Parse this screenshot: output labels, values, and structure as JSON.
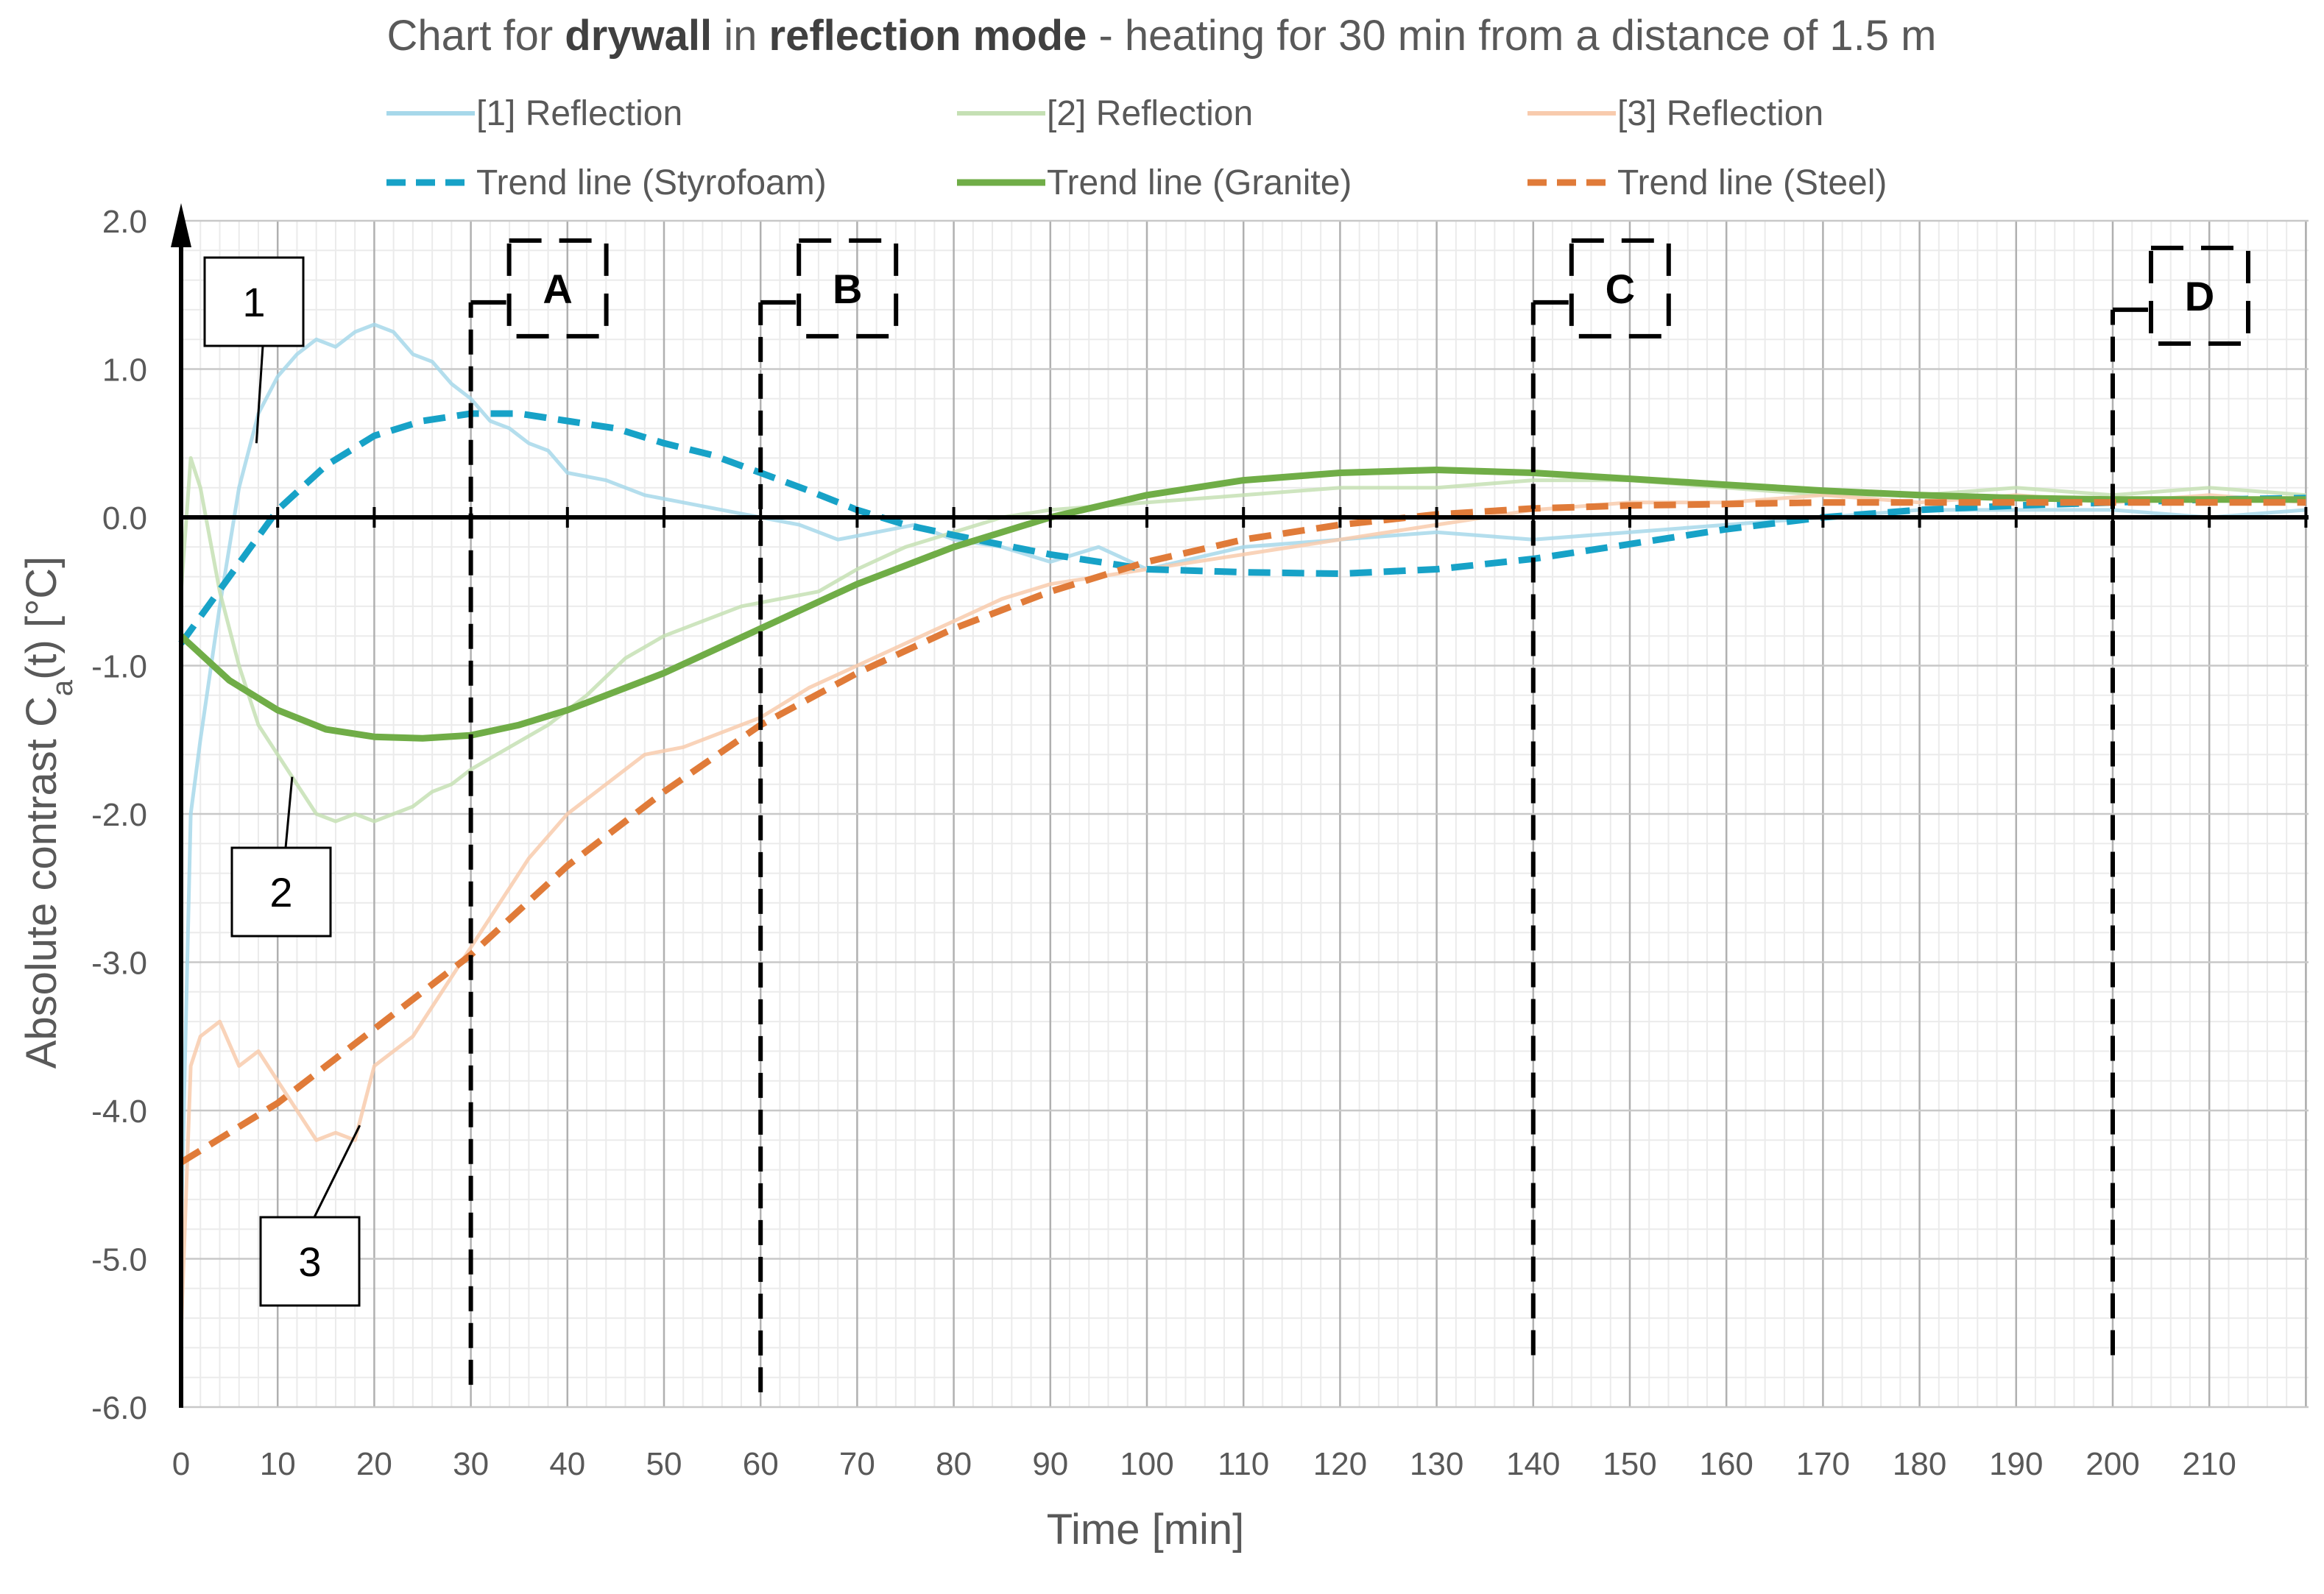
{
  "chart_data": {
    "type": "line",
    "title": {
      "parts": [
        {
          "text": "Chart for ",
          "bold": false
        },
        {
          "text": "drywall",
          "bold": true
        },
        {
          "text": " in ",
          "bold": false
        },
        {
          "text": "reflection mode",
          "bold": true
        },
        {
          "text": " - heating for 30 min from a distance of 1.5 m",
          "bold": false
        }
      ]
    },
    "xlabel": "Time [min]",
    "ylabel": {
      "prefix": "Absolute contrast C",
      "subscript": "a",
      "suffix": "(t)   [°C]"
    },
    "xlim": [
      0,
      220
    ],
    "ylim": [
      -6,
      2
    ],
    "x_ticks": [
      0,
      10,
      20,
      30,
      40,
      50,
      60,
      70,
      80,
      90,
      100,
      110,
      120,
      130,
      140,
      150,
      160,
      170,
      180,
      190,
      200,
      210
    ],
    "y_ticks": [
      2,
      1,
      0,
      -1,
      -2,
      -3,
      -4,
      -5,
      -6
    ],
    "y_tick_labels": [
      "2.0",
      "1.0",
      "0.0",
      "-1.0",
      "-2.0",
      "-3.0",
      "-4.0",
      "-5.0",
      "-6.0"
    ],
    "grid": true,
    "legend_position": "top",
    "legend": [
      {
        "label": "[1] Reflection",
        "color": "#a7d8ea",
        "style": "solid"
      },
      {
        "label": "[2] Reflection",
        "color": "#c5e0b4",
        "style": "solid"
      },
      {
        "label": "[3] Reflection",
        "color": "#f8cbad",
        "style": "solid"
      },
      {
        "label": "Trend line (Styrofoam)",
        "color": "#17a2c7",
        "style": "dashed"
      },
      {
        "label": "Trend line (Granite)",
        "color": "#70ad47",
        "style": "solid"
      },
      {
        "label": "Trend line (Steel)",
        "color": "#e07b39",
        "style": "dashed"
      }
    ],
    "series": [
      {
        "name": "[1] Reflection",
        "color": "#a7d8ea",
        "style": "solid",
        "x": [
          0,
          1,
          2,
          4,
          6,
          8,
          10,
          12,
          14,
          16,
          18,
          20,
          22,
          24,
          26,
          28,
          30,
          32,
          34,
          36,
          38,
          40,
          44,
          48,
          52,
          56,
          60,
          64,
          68,
          72,
          76,
          80,
          85,
          90,
          95,
          100,
          110,
          120,
          130,
          140,
          150,
          160,
          170,
          180,
          190,
          200,
          210,
          220
        ],
        "y": [
          -4.8,
          -2.0,
          -1.5,
          -0.6,
          0.2,
          0.7,
          0.95,
          1.1,
          1.2,
          1.15,
          1.25,
          1.3,
          1.25,
          1.1,
          1.05,
          0.9,
          0.8,
          0.65,
          0.6,
          0.5,
          0.45,
          0.3,
          0.25,
          0.15,
          0.1,
          0.05,
          0.0,
          -0.05,
          -0.15,
          -0.1,
          -0.05,
          -0.15,
          -0.2,
          -0.3,
          -0.2,
          -0.35,
          -0.2,
          -0.15,
          -0.1,
          -0.15,
          -0.1,
          -0.05,
          0.0,
          0.05,
          0.05,
          0.05,
          0.0,
          0.05
        ]
      },
      {
        "name": "[2] Reflection",
        "color": "#c5e0b4",
        "style": "solid",
        "x": [
          0,
          1,
          2,
          4,
          6,
          8,
          10,
          12,
          14,
          16,
          18,
          20,
          22,
          24,
          26,
          28,
          30,
          34,
          38,
          42,
          46,
          50,
          54,
          58,
          62,
          66,
          70,
          75,
          80,
          85,
          90,
          100,
          110,
          120,
          130,
          140,
          150,
          160,
          170,
          180,
          190,
          200,
          210,
          220
        ],
        "y": [
          -0.5,
          0.4,
          0.2,
          -0.5,
          -1.0,
          -1.4,
          -1.6,
          -1.8,
          -2.0,
          -2.05,
          -2.0,
          -2.05,
          -2.0,
          -1.95,
          -1.85,
          -1.8,
          -1.7,
          -1.55,
          -1.4,
          -1.2,
          -0.95,
          -0.8,
          -0.7,
          -0.6,
          -0.55,
          -0.5,
          -0.35,
          -0.2,
          -0.1,
          0.0,
          0.05,
          0.1,
          0.15,
          0.2,
          0.2,
          0.25,
          0.25,
          0.2,
          0.15,
          0.15,
          0.2,
          0.15,
          0.2,
          0.15
        ]
      },
      {
        "name": "[3] Reflection",
        "color": "#f8cbad",
        "style": "solid",
        "x": [
          0,
          1,
          2,
          4,
          6,
          8,
          10,
          12,
          14,
          16,
          18,
          20,
          24,
          28,
          32,
          36,
          40,
          44,
          48,
          52,
          56,
          60,
          65,
          70,
          75,
          80,
          85,
          90,
          100,
          110,
          120,
          130,
          140,
          150,
          160,
          170,
          180,
          190,
          200,
          210,
          220
        ],
        "y": [
          -5.5,
          -3.7,
          -3.5,
          -3.4,
          -3.7,
          -3.6,
          -3.8,
          -4.0,
          -4.2,
          -4.15,
          -4.2,
          -3.7,
          -3.5,
          -3.1,
          -2.7,
          -2.3,
          -2.0,
          -1.8,
          -1.6,
          -1.55,
          -1.45,
          -1.35,
          -1.15,
          -1.0,
          -0.85,
          -0.7,
          -0.55,
          -0.45,
          -0.35,
          -0.25,
          -0.15,
          -0.05,
          0.05,
          0.1,
          0.1,
          0.15,
          0.1,
          0.15,
          0.1,
          0.15,
          0.1
        ]
      },
      {
        "name": "Trend line (Styrofoam)",
        "color": "#17a2c7",
        "style": "dashed",
        "x": [
          0,
          5,
          10,
          15,
          20,
          25,
          30,
          35,
          40,
          45,
          50,
          55,
          60,
          65,
          70,
          75,
          80,
          90,
          100,
          110,
          120,
          130,
          140,
          150,
          160,
          170,
          180,
          190,
          200,
          210,
          220
        ],
        "y": [
          -0.85,
          -0.4,
          0.05,
          0.35,
          0.55,
          0.65,
          0.7,
          0.7,
          0.65,
          0.6,
          0.5,
          0.42,
          0.3,
          0.18,
          0.05,
          -0.05,
          -0.12,
          -0.25,
          -0.35,
          -0.37,
          -0.38,
          -0.35,
          -0.28,
          -0.18,
          -0.08,
          0.0,
          0.05,
          0.08,
          0.1,
          0.12,
          0.13
        ]
      },
      {
        "name": "Trend line (Granite)",
        "color": "#70ad47",
        "style": "solid",
        "x": [
          0,
          5,
          10,
          15,
          20,
          25,
          30,
          35,
          40,
          50,
          60,
          70,
          80,
          90,
          100,
          110,
          120,
          130,
          140,
          150,
          160,
          170,
          180,
          190,
          200,
          210,
          220
        ],
        "y": [
          -0.8,
          -1.1,
          -1.3,
          -1.43,
          -1.48,
          -1.49,
          -1.47,
          -1.4,
          -1.3,
          -1.05,
          -0.75,
          -0.45,
          -0.2,
          0.0,
          0.15,
          0.25,
          0.3,
          0.32,
          0.3,
          0.26,
          0.22,
          0.18,
          0.15,
          0.13,
          0.12,
          0.12,
          0.12
        ]
      },
      {
        "name": "Trend line (Steel)",
        "color": "#e07b39",
        "style": "dashed",
        "x": [
          0,
          10,
          20,
          30,
          40,
          50,
          60,
          70,
          80,
          90,
          100,
          110,
          120,
          130,
          140,
          150,
          160,
          170,
          180,
          190,
          200,
          210,
          220
        ],
        "y": [
          -4.35,
          -3.95,
          -3.45,
          -2.95,
          -2.35,
          -1.85,
          -1.4,
          -1.05,
          -0.75,
          -0.5,
          -0.3,
          -0.15,
          -0.05,
          0.02,
          0.06,
          0.08,
          0.09,
          0.1,
          0.1,
          0.1,
          0.1,
          0.1,
          0.1
        ]
      }
    ],
    "phase_markers": [
      {
        "label": "A",
        "x": 30,
        "y_top": 1.45,
        "y_bottom": -5.85
      },
      {
        "label": "B",
        "x": 60,
        "y_top": 1.45,
        "y_bottom": -5.9
      },
      {
        "label": "C",
        "x": 140,
        "y_top": 1.45,
        "y_bottom": -5.65
      },
      {
        "label": "D",
        "x": 200,
        "y_top": 1.4,
        "y_bottom": -5.65
      }
    ],
    "callouts": [
      {
        "label": "1",
        "target_x": 7.8,
        "target_y": 0.5
      },
      {
        "label": "2",
        "target_x": 11.5,
        "target_y": -1.75
      },
      {
        "label": "3",
        "target_x": 18.5,
        "target_y": -4.1
      }
    ]
  }
}
